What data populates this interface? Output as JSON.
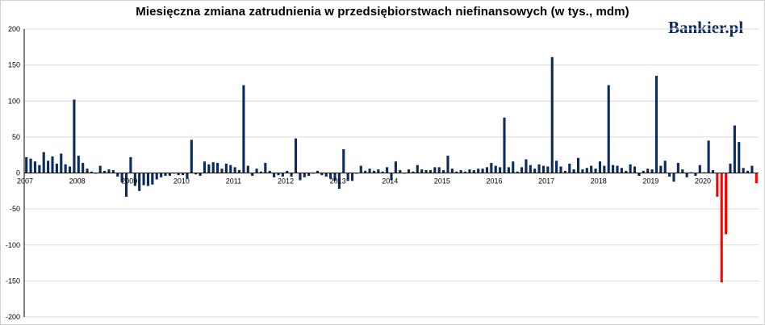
{
  "title": "Miesięczna zmiana zatrudnienia w przedsiębiorstwach niefinansowych (w tys., mdm)",
  "brand": "Bankier.pl",
  "colors": {
    "positive": "#0b2a5e",
    "highlight": "#ff0000",
    "grid": "#d9d9d9",
    "axis": "#000000"
  },
  "chart_data": {
    "type": "bar",
    "start": "2007-01",
    "ylim": [
      -200,
      200
    ],
    "yticks": [
      200,
      150,
      100,
      50,
      0,
      -50,
      -100,
      -150,
      -200
    ],
    "xticks": [
      "2007",
      "2008",
      "2009",
      "2010",
      "2011",
      "2012",
      "2013",
      "2014",
      "2015",
      "2016",
      "2017",
      "2018",
      "2019",
      "2020"
    ],
    "grid": true,
    "highlight_start": "2020-03",
    "values": [
      22,
      20,
      16,
      11,
      29,
      17,
      23,
      13,
      27,
      12,
      9,
      102,
      24,
      14,
      6,
      2,
      0,
      10,
      3,
      5,
      4,
      -5,
      -13,
      -33,
      22,
      -18,
      -25,
      -17,
      -18,
      -16,
      -9,
      -6,
      -4,
      -4,
      0,
      -3,
      -3,
      -8,
      46,
      -2,
      -4,
      16,
      12,
      15,
      14,
      6,
      13,
      11,
      8,
      4,
      122,
      10,
      -4,
      6,
      2,
      14,
      3,
      -6,
      -3,
      -5,
      3,
      -5,
      48,
      -10,
      -6,
      -4,
      -1,
      3,
      -3,
      -5,
      -8,
      -11,
      -22,
      33,
      -11,
      -11,
      -1,
      10,
      3,
      6,
      3,
      5,
      2,
      8,
      -10,
      16,
      4,
      0,
      5,
      2,
      11,
      5,
      4,
      4,
      8,
      8,
      4,
      24,
      6,
      2,
      4,
      2,
      5,
      4,
      6,
      6,
      8,
      14,
      10,
      8,
      77,
      8,
      16,
      2,
      8,
      19,
      11,
      6,
      12,
      10,
      9,
      161,
      17,
      9,
      3,
      13,
      5,
      21,
      5,
      7,
      10,
      6,
      16,
      10,
      122,
      11,
      10,
      7,
      3,
      12,
      9,
      -4,
      3,
      6,
      5,
      135,
      10,
      17,
      -5,
      -12,
      14,
      5,
      -6,
      1,
      -4,
      11,
      1,
      45,
      4,
      -33,
      -152,
      -85,
      13,
      66,
      43,
      7,
      3,
      10,
      -14
    ]
  }
}
